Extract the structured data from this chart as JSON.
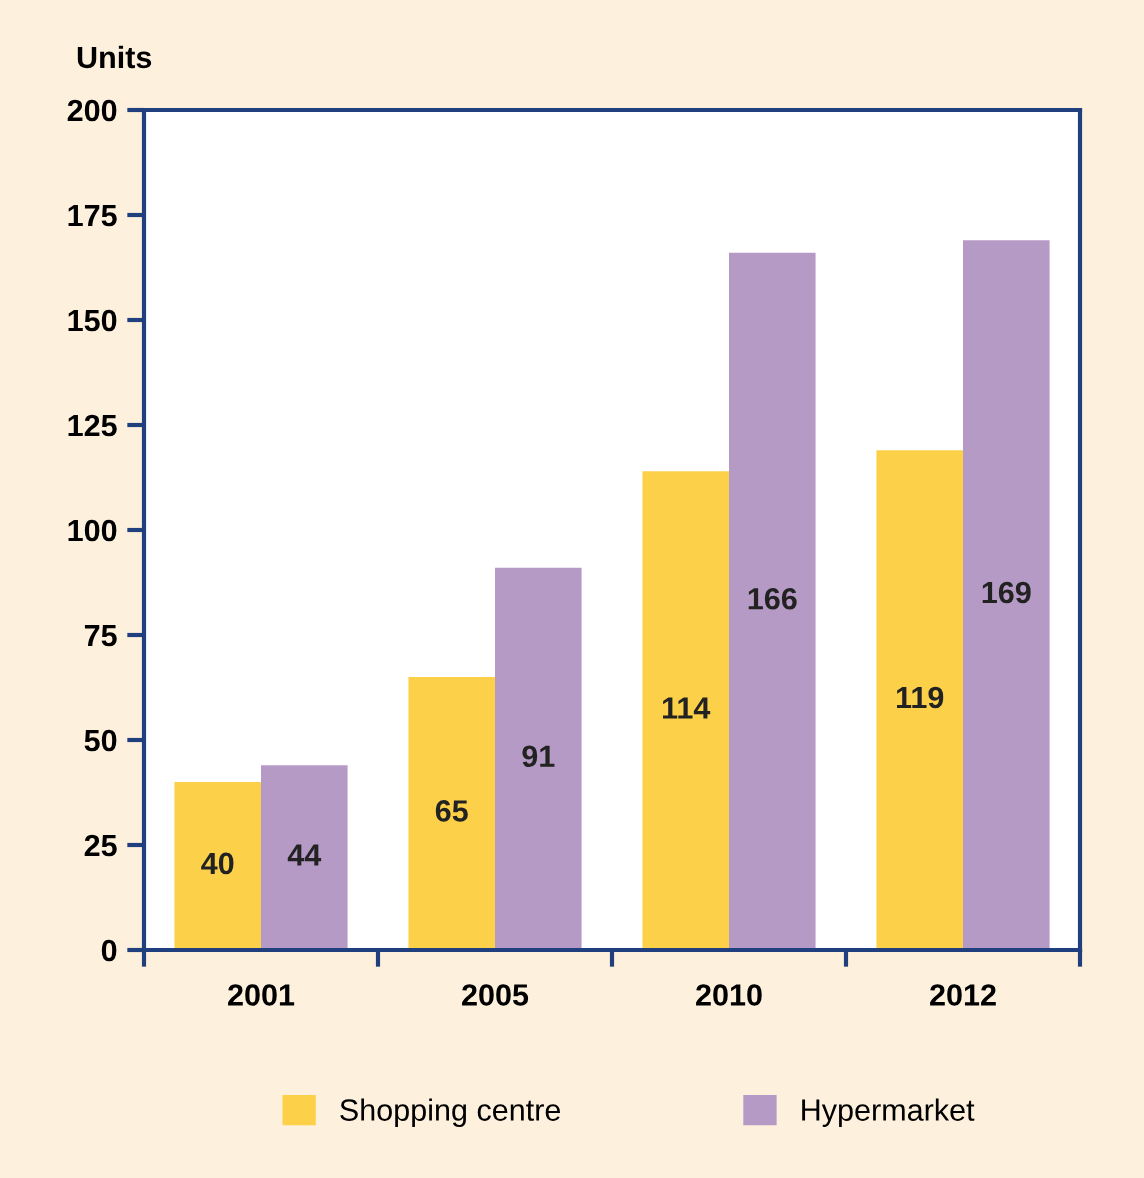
{
  "chart_data": {
    "type": "bar",
    "ylabel": "Units",
    "categories": [
      "2001",
      "2005",
      "2010",
      "2012"
    ],
    "series": [
      {
        "name": "Shopping centre",
        "color": "#fdd04a",
        "values": [
          40,
          65,
          114,
          119
        ]
      },
      {
        "name": "Hypermarket",
        "color": "#b69ac6",
        "values": [
          44,
          91,
          166,
          169
        ]
      }
    ],
    "ylim": [
      0,
      200
    ],
    "yticks": [
      0,
      25,
      50,
      75,
      100,
      125,
      150,
      175,
      200
    ],
    "data_labels": true,
    "legend": "bottom",
    "grid": false
  }
}
